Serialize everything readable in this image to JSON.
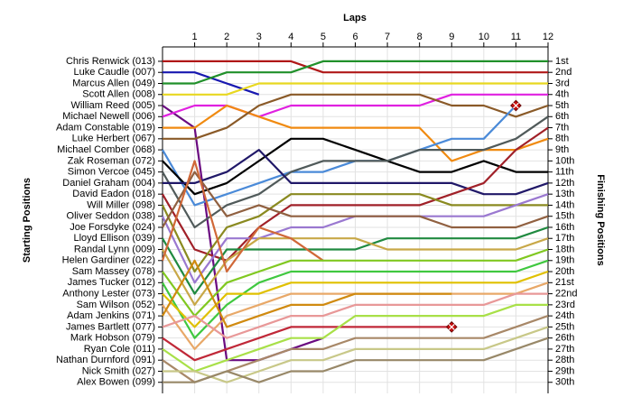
{
  "chart_data": {
    "type": "line",
    "title": "Laps",
    "y_label": "Starting Positions",
    "y2_label": "Finishing Positions",
    "x": [
      0,
      1,
      2,
      3,
      4,
      5,
      6,
      7,
      8,
      9,
      10,
      11,
      12
    ],
    "xlim": [
      0,
      12
    ],
    "xticks": [
      1,
      2,
      3,
      4,
      5,
      6,
      7,
      8,
      9,
      10,
      11,
      12
    ],
    "ylim": [
      31,
      -0.3
    ],
    "y2lim": [
      31,
      -0.3
    ],
    "grid": true,
    "y2ticks": [
      {
        "value": 1,
        "label": "1st"
      },
      {
        "value": 2,
        "label": "2nd"
      },
      {
        "value": 3,
        "label": "3rd"
      },
      {
        "value": 4,
        "label": "4th"
      },
      {
        "value": 5,
        "label": "5th"
      },
      {
        "value": 6,
        "label": "6th"
      },
      {
        "value": 7,
        "label": "7th"
      },
      {
        "value": 8,
        "label": "8th"
      },
      {
        "value": 9,
        "label": "9th"
      },
      {
        "value": 10,
        "label": "10th"
      },
      {
        "value": 11,
        "label": "11th"
      },
      {
        "value": 12,
        "label": "12th"
      },
      {
        "value": 13,
        "label": "13th"
      },
      {
        "value": 14,
        "label": "14th"
      },
      {
        "value": 15,
        "label": "15th"
      },
      {
        "value": 16,
        "label": "16th"
      },
      {
        "value": 17,
        "label": "17th"
      },
      {
        "value": 18,
        "label": "18th"
      },
      {
        "value": 19,
        "label": "19th"
      },
      {
        "value": 20,
        "label": "20th"
      },
      {
        "value": 21,
        "label": "21st"
      },
      {
        "value": 22,
        "label": "22nd"
      },
      {
        "value": 23,
        "label": "23rd"
      },
      {
        "value": 24,
        "label": "24th"
      },
      {
        "value": 25,
        "label": "25th"
      },
      {
        "value": 26,
        "label": "26th"
      },
      {
        "value": 27,
        "label": "27th"
      },
      {
        "value": 28,
        "label": "28th"
      },
      {
        "value": 29,
        "label": "29th"
      },
      {
        "value": 30,
        "label": "30th"
      }
    ],
    "series": [
      {
        "name": "Chris Renwick (013)",
        "color": "#b01818",
        "values": [
          1,
          1,
          1,
          1,
          1,
          2,
          2,
          2,
          2,
          2,
          2,
          2,
          2
        ]
      },
      {
        "name": "Luke Caudle (007)",
        "color": "#1818b0",
        "values": [
          2,
          2,
          3,
          4,
          null,
          null,
          null,
          null,
          null,
          null,
          null,
          null,
          null
        ]
      },
      {
        "name": "Marcus Allen (049)",
        "color": "#20902a",
        "values": [
          3,
          3,
          2,
          2,
          2,
          1,
          1,
          1,
          1,
          1,
          1,
          1,
          1
        ]
      },
      {
        "name": "Scott Allen (008)",
        "color": "#e8d820",
        "values": [
          4,
          4,
          4,
          3,
          3,
          3,
          3,
          3,
          3,
          3,
          3,
          3,
          3
        ]
      },
      {
        "name": "William Reed (005)",
        "color": "#6a0a80",
        "values": [
          5,
          7,
          28,
          28,
          27,
          26,
          null,
          null,
          null,
          null,
          null,
          null,
          null
        ]
      },
      {
        "name": "Michael Newell (006)",
        "color": "#e020e0",
        "values": [
          6,
          5,
          5,
          6,
          5,
          5,
          5,
          5,
          5,
          4,
          4,
          4,
          4
        ]
      },
      {
        "name": "Adam Constable (019)",
        "color": "#f08a10",
        "values": [
          7,
          7,
          5,
          6,
          7,
          7,
          7,
          7,
          7,
          10,
          9,
          9,
          8
        ]
      },
      {
        "name": "Luke Herbert (067)",
        "color": "#8a5a28",
        "values": [
          8,
          8,
          7,
          5,
          4,
          4,
          4,
          4,
          4,
          5,
          5,
          6,
          5
        ]
      },
      {
        "name": "Michael Comber (068)",
        "color": "#4a8ad8",
        "values": [
          9,
          14,
          13,
          12,
          11,
          11,
          10,
          10,
          9,
          8,
          8,
          5,
          null
        ],
        "retired": true
      },
      {
        "name": "Zak Roseman (072)",
        "color": "#000000",
        "values": [
          10,
          13,
          12,
          10,
          8,
          8,
          9,
          10,
          11,
          11,
          10,
          11,
          11
        ]
      },
      {
        "name": "Simon Vercoe (045)",
        "color": "#505a5a",
        "values": [
          11,
          16,
          14,
          13,
          11,
          10,
          10,
          10,
          9,
          9,
          9,
          8,
          6
        ]
      },
      {
        "name": "Daniel Graham (004)",
        "color": "#201868",
        "values": [
          12,
          12,
          11,
          9,
          12,
          12,
          12,
          12,
          12,
          12,
          13,
          13,
          12
        ]
      },
      {
        "name": "David Eadon (018)",
        "color": "#a02028",
        "values": [
          13,
          18,
          19,
          16,
          14,
          14,
          14,
          14,
          14,
          13,
          12,
          9,
          7
        ]
      },
      {
        "name": "Will Miller (098)",
        "color": "#8a8a20",
        "values": [
          14,
          20,
          16,
          15,
          13,
          13,
          13,
          13,
          13,
          14,
          14,
          14,
          14
        ]
      },
      {
        "name": "Oliver Seddon (038)",
        "color": "#9a78d0",
        "values": [
          15,
          21,
          17,
          17,
          16,
          16,
          15,
          15,
          15,
          15,
          15,
          14,
          13
        ]
      },
      {
        "name": "Joe Forsdyke (024)",
        "color": "#906040",
        "values": [
          16,
          11,
          15,
          14,
          15,
          15,
          15,
          15,
          15,
          16,
          16,
          16,
          15
        ]
      },
      {
        "name": "Lloyd Ellison (039)",
        "color": "#208a40",
        "values": [
          17,
          22,
          18,
          18,
          18,
          18,
          18,
          17,
          17,
          17,
          17,
          17,
          16
        ]
      },
      {
        "name": "Randal Lynn (009)",
        "color": "#c8a848",
        "values": [
          18,
          23,
          19,
          17,
          17,
          17,
          17,
          18,
          18,
          18,
          18,
          18,
          17
        ]
      },
      {
        "name": "Helen Gardiner (022)",
        "color": "#d06838",
        "values": [
          19,
          10,
          20,
          16,
          17,
          19,
          null,
          null,
          null,
          null,
          null,
          null,
          null
        ]
      },
      {
        "name": "Sam Massey (078)",
        "color": "#80c820",
        "values": [
          20,
          24,
          21,
          20,
          19,
          19,
          19,
          19,
          19,
          19,
          19,
          19,
          18
        ]
      },
      {
        "name": "James Tucker (012)",
        "color": "#40c840",
        "values": [
          21,
          26,
          23,
          21,
          20,
          20,
          20,
          20,
          20,
          20,
          20,
          20,
          19
        ]
      },
      {
        "name": "Anthony Lester (073)",
        "color": "#e0c000",
        "values": [
          22,
          25,
          22,
          22,
          21,
          21,
          21,
          21,
          21,
          21,
          21,
          21,
          20
        ]
      },
      {
        "name": "Sam Wilson (052)",
        "color": "#e8a868",
        "values": [
          23,
          27,
          24,
          23,
          22,
          22,
          22,
          22,
          22,
          22,
          22,
          22,
          21
        ]
      },
      {
        "name": "Adam Jenkins (071)",
        "color": "#d08a10",
        "values": [
          24,
          19,
          25,
          24,
          23,
          23,
          22,
          22,
          22,
          22,
          null,
          null,
          null
        ]
      },
      {
        "name": "James Bartlett (077)",
        "color": "#e89898",
        "values": [
          25,
          24,
          26,
          25,
          24,
          24,
          23,
          23,
          23,
          23,
          23,
          22,
          22
        ]
      },
      {
        "name": "Mark Hobson (079)",
        "color": "#c02838",
        "values": [
          26,
          28,
          27,
          26,
          25,
          25,
          25,
          25,
          25,
          25,
          null,
          null,
          null
        ],
        "retired": true
      },
      {
        "name": "Ryan Cole (011)",
        "color": "#a8e048",
        "values": [
          27,
          29,
          28,
          27,
          26,
          26,
          24,
          24,
          24,
          24,
          24,
          23,
          23
        ]
      },
      {
        "name": "Nathan Durnford (091)",
        "color": "#a88868",
        "values": [
          28,
          30,
          29,
          28,
          27,
          27,
          26,
          26,
          26,
          26,
          26,
          25,
          24
        ]
      },
      {
        "name": "Nick Smith (027)",
        "color": "#c8c888",
        "values": [
          29,
          29,
          30,
          29,
          28,
          28,
          27,
          27,
          27,
          27,
          27,
          26,
          25
        ]
      },
      {
        "name": "Alex Bowen (099)",
        "color": "#988868",
        "values": [
          30,
          30,
          29,
          30,
          29,
          29,
          28,
          28,
          28,
          28,
          28,
          27,
          26
        ]
      }
    ]
  }
}
